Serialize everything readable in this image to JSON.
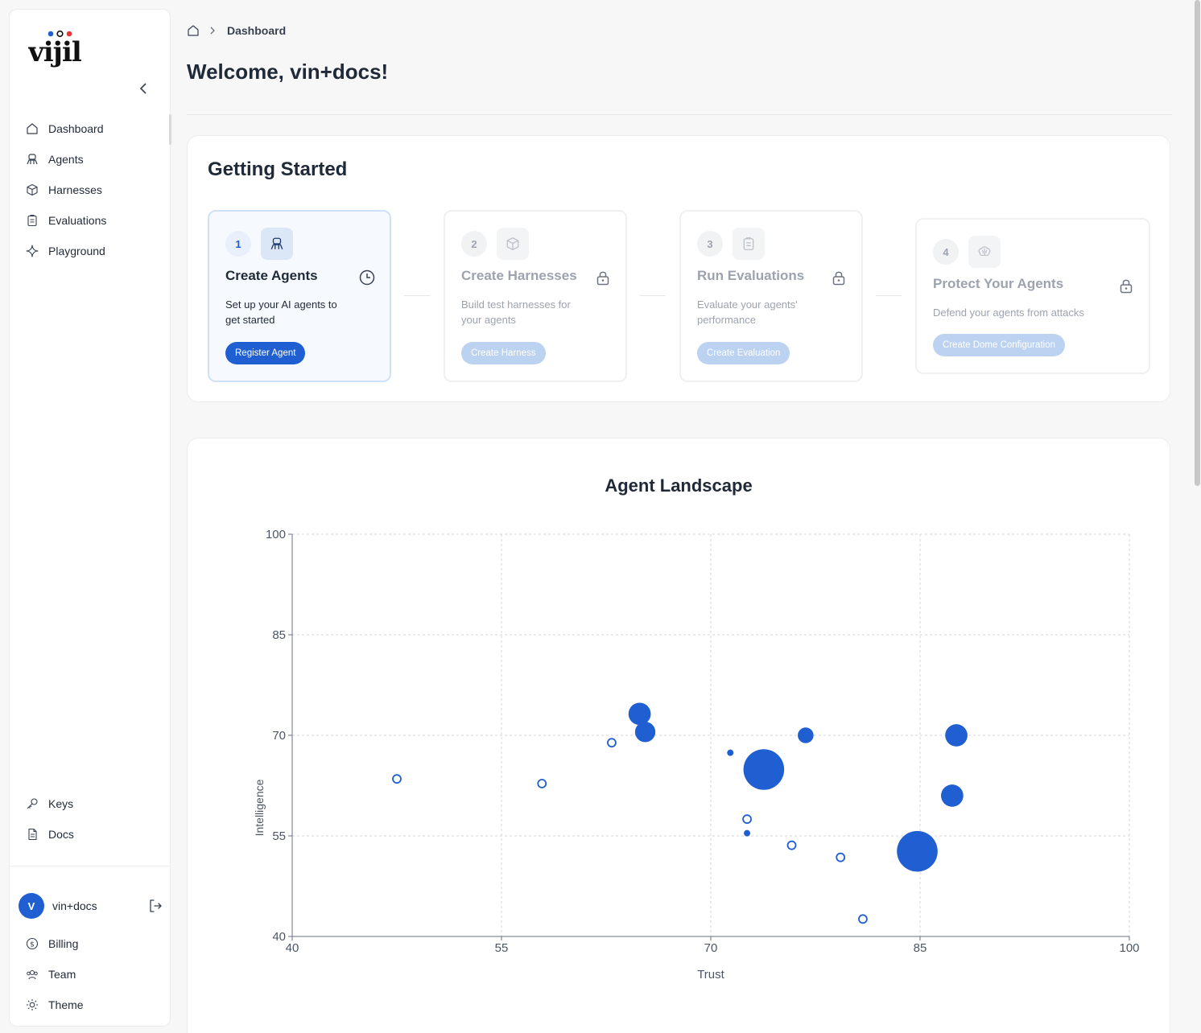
{
  "brand": {
    "logo_text": "vijil"
  },
  "sidebar": {
    "main_items": [
      {
        "label": "Dashboard",
        "icon": "home-icon"
      },
      {
        "label": "Agents",
        "icon": "agent-icon"
      },
      {
        "label": "Harnesses",
        "icon": "cube-icon"
      },
      {
        "label": "Evaluations",
        "icon": "clipboard-icon"
      },
      {
        "label": "Playground",
        "icon": "sparkle-icon"
      }
    ],
    "bottom_items": [
      {
        "label": "Keys",
        "icon": "key-icon"
      },
      {
        "label": "Docs",
        "icon": "docs-icon"
      }
    ],
    "user": {
      "initial": "V",
      "name": "vin+docs"
    },
    "account_items": [
      {
        "label": "Billing",
        "icon": "dollar-icon"
      },
      {
        "label": "Team",
        "icon": "team-icon"
      },
      {
        "label": "Theme",
        "icon": "sun-icon"
      }
    ]
  },
  "breadcrumb": {
    "current": "Dashboard"
  },
  "page": {
    "title": "Welcome, vin+docs!"
  },
  "getting_started": {
    "title": "Getting Started",
    "steps": [
      {
        "number": "1",
        "title": "Create Agents",
        "description": "Set up your AI agents to get started",
        "button": "Register Agent",
        "status": "clock-icon",
        "locked": false
      },
      {
        "number": "2",
        "title": "Create Harnesses",
        "description": "Build test harnesses for your agents",
        "button": "Create Harness",
        "status": "lock-icon",
        "locked": true
      },
      {
        "number": "3",
        "title": "Run Evaluations",
        "description": "Evaluate your agents' performance",
        "button": "Create Evaluation",
        "status": "lock-icon",
        "locked": true
      },
      {
        "number": "4",
        "title": "Protect Your Agents",
        "description": "Defend your agents from attacks",
        "button": "Create Dome Configuration",
        "status": "lock-icon",
        "locked": true
      }
    ]
  },
  "chart_data": {
    "type": "scatter",
    "title": "Agent Landscape",
    "xlabel": "Trust",
    "ylabel": "Intelligence",
    "xlim": [
      40,
      100
    ],
    "ylim": [
      40,
      100
    ],
    "xticks": [
      40,
      55,
      70,
      85,
      100
    ],
    "yticks": [
      40,
      55,
      70,
      85,
      100
    ],
    "grid": true,
    "color": "#1f5fd1",
    "points": [
      {
        "x": 47.5,
        "y": 63.5,
        "size": 1,
        "filled": false
      },
      {
        "x": 57.9,
        "y": 62.8,
        "size": 1,
        "filled": false
      },
      {
        "x": 62.9,
        "y": 68.9,
        "size": 1,
        "filled": false
      },
      {
        "x": 64.9,
        "y": 73.2,
        "size": 3,
        "filled": true
      },
      {
        "x": 65.3,
        "y": 70.5,
        "size": 2.5,
        "filled": true
      },
      {
        "x": 71.4,
        "y": 67.4,
        "size": 1,
        "filled": true
      },
      {
        "x": 73.8,
        "y": 64.9,
        "size": 10,
        "filled": true
      },
      {
        "x": 72.6,
        "y": 57.5,
        "size": 1,
        "filled": false
      },
      {
        "x": 72.6,
        "y": 55.4,
        "size": 1,
        "filled": true
      },
      {
        "x": 75.8,
        "y": 53.6,
        "size": 1,
        "filled": false
      },
      {
        "x": 76.8,
        "y": 70.0,
        "size": 1.5,
        "filled": true
      },
      {
        "x": 79.3,
        "y": 51.8,
        "size": 1,
        "filled": false
      },
      {
        "x": 80.9,
        "y": 42.6,
        "size": 1,
        "filled": false
      },
      {
        "x": 84.8,
        "y": 52.7,
        "size": 10,
        "filled": true
      },
      {
        "x": 87.3,
        "y": 61.0,
        "size": 3,
        "filled": true
      },
      {
        "x": 87.6,
        "y": 70.0,
        "size": 3,
        "filled": true
      }
    ]
  }
}
